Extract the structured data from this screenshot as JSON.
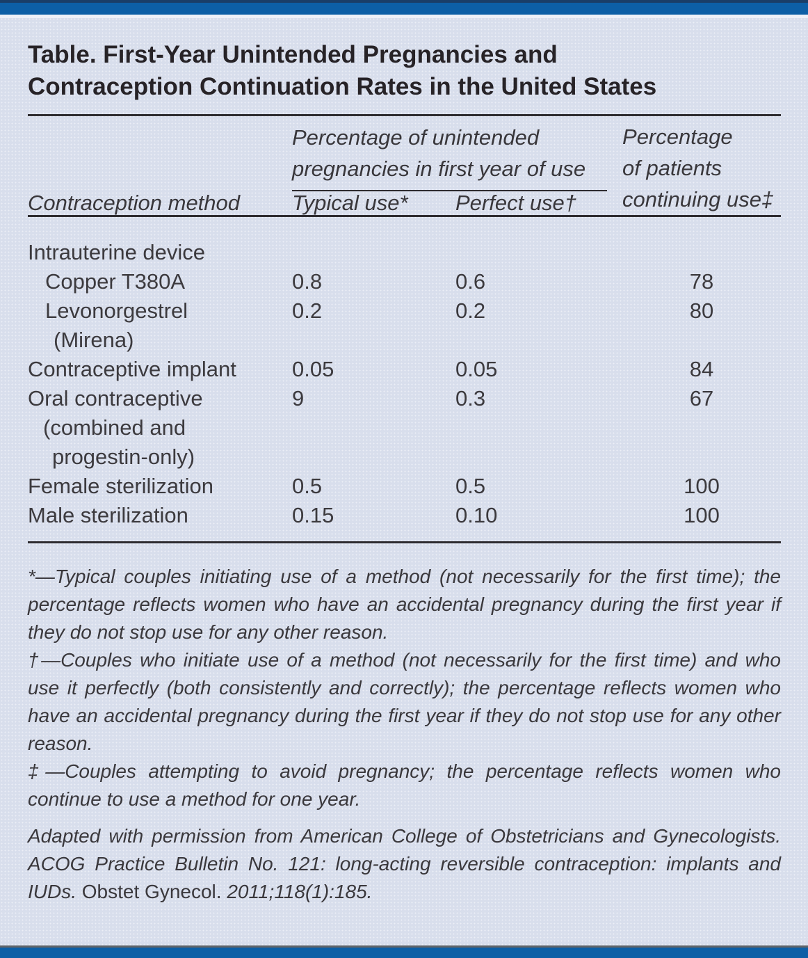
{
  "palette": {
    "page_background": "#d8deec",
    "bar_blue": "#0d5fa6",
    "bar_top_navy": "#1a3e68",
    "bottom_bar_gray_line": "#606468",
    "rule_color": "#2e2c30",
    "title_color": "#272327",
    "body_text_color": "#3c3a3e"
  },
  "title": {
    "lines": [
      "Table. First-Year Unintended Pregnancies and",
      "Contraception Continuation Rates in the United States"
    ]
  },
  "table": {
    "col1_header": "Contraception method",
    "span_header_lines": [
      "Percentage of unintended",
      "pregnancies in first year of use"
    ],
    "col2_header": "Typical use*",
    "col3_header": "Perfect use†",
    "col4_header_lines": [
      "Percentage",
      "of patients",
      "continuing use‡"
    ],
    "rows": [
      {
        "method_lines": [
          "Intrauterine device"
        ],
        "typical": "",
        "perfect": "",
        "continuing": ""
      },
      {
        "method_lines": [
          "Copper T380A"
        ],
        "typical": "0.8",
        "perfect": "0.6",
        "continuing": "78"
      },
      {
        "method_lines": [
          "Levonorgestrel",
          "(Mirena)"
        ],
        "typical": "0.2",
        "perfect": "0.2",
        "continuing": "80"
      },
      {
        "method_lines": [
          "Contraceptive implant"
        ],
        "typical": "0.05",
        "perfect": "0.05",
        "continuing": "84"
      },
      {
        "method_lines": [
          "Oral contraceptive",
          "(combined and",
          "progestin-only)"
        ],
        "typical": "9",
        "perfect": "0.3",
        "continuing": "67"
      },
      {
        "method_lines": [
          "Female sterilization"
        ],
        "typical": "0.5",
        "perfect": "0.5",
        "continuing": "100"
      },
      {
        "method_lines": [
          "Male sterilization"
        ],
        "typical": "0.15",
        "perfect": "0.10",
        "continuing": "100"
      }
    ]
  },
  "footnotes": [
    "*—Typical couples initiating use of a method (not necessarily for the first time); the percentage reflects women who have an accidental pregnancy during the first year if they do not stop use for any other reason.",
    "†—Couples who initiate use of a method (not necessarily for the first time) and who use it perfectly (both consistently and correctly); the percentage reflects women who have an accidental pregnancy during the first year if they do not stop use for any other reason.",
    "‡—Couples attempting to avoid pregnancy; the percentage reflects women who continue to use a method for one year."
  ],
  "attribution": {
    "part1": "Adapted with permission from American College of Obstetricians and Gynecologists. ACOG Practice Bulletin No. 121: long-acting reversible contraception: implants and IUDs.",
    "journal": "Obstet Gynecol.",
    "part3": "2011;118(1):185."
  }
}
